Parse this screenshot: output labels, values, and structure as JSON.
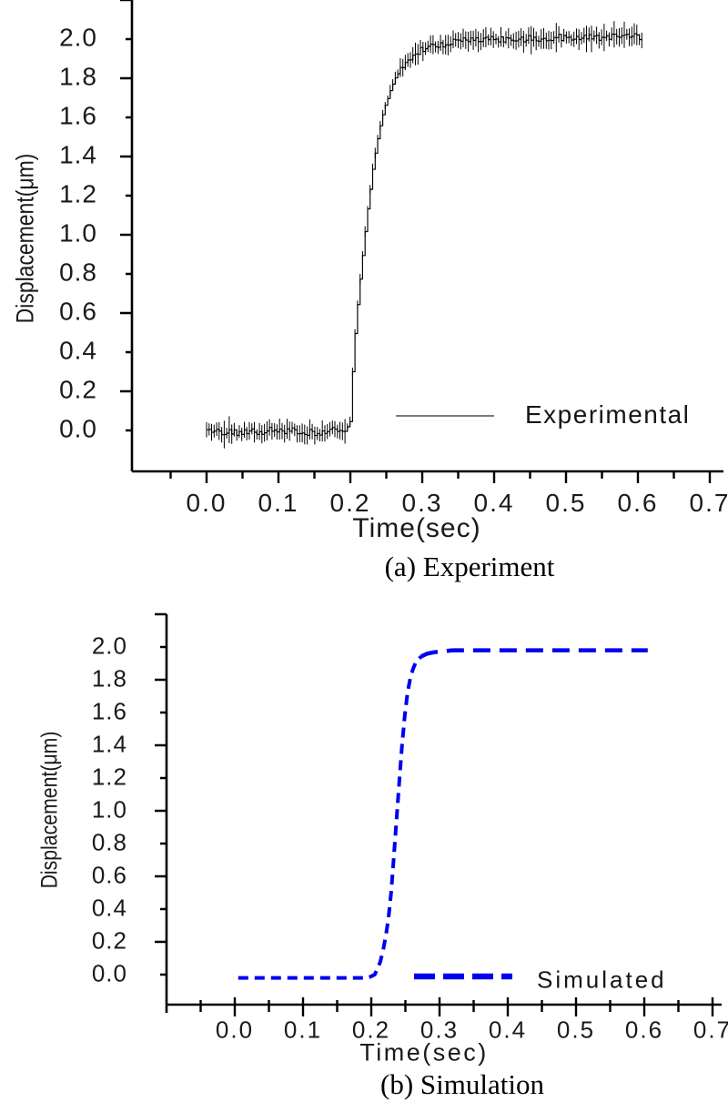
{
  "colors": {
    "ink": "#000000",
    "text": "#1a1a1a",
    "simulated_blue": "#0000ee"
  },
  "chart_data": [
    {
      "type": "line",
      "title": "(a) Experiment",
      "xlabel": "Time(sec)",
      "ylabel": "Displacement(μm)",
      "xlim": [
        -0.104,
        0.719
      ],
      "ylim": [
        -0.209,
        2.2
      ],
      "grid": false,
      "x_tick_values": [
        0.0,
        0.1,
        0.2,
        0.3,
        0.4,
        0.5,
        0.6,
        0.7
      ],
      "x_tick_labels": [
        "0.0",
        "0.1",
        "0.2",
        "0.3",
        "0.4",
        "0.5",
        "0.6",
        "0.7"
      ],
      "x_minor_step": 0.05,
      "y_tick_values": [
        0.0,
        0.2,
        0.4,
        0.6,
        0.8,
        1.0,
        1.2,
        1.4,
        1.6,
        1.8,
        2.0
      ],
      "y_tick_labels": [
        "0.0",
        "0.2",
        "0.4",
        "0.6",
        "0.8",
        "1.0",
        "1.2",
        "1.4",
        "1.6",
        "1.8",
        "2.0"
      ],
      "legend": {
        "label": "Experimental",
        "line_style": "solid",
        "color": "#000000",
        "position": "inside lower right"
      },
      "series": [
        {
          "name": "Experimental",
          "color": "#000000",
          "style": "steps-with-error-bars",
          "error_bar_amplitude": 0.05,
          "noise_amplitude": 0.018,
          "points": [
            [
              0.0,
              0.0
            ],
            [
              0.05,
              -0.01
            ],
            [
              0.1,
              0.0
            ],
            [
              0.15,
              -0.01
            ],
            [
              0.195,
              0.01
            ],
            [
              0.2,
              0.05
            ],
            [
              0.204,
              0.38
            ],
            [
              0.208,
              0.56
            ],
            [
              0.212,
              0.72
            ],
            [
              0.216,
              0.86
            ],
            [
              0.22,
              1.0
            ],
            [
              0.224,
              1.13
            ],
            [
              0.228,
              1.25
            ],
            [
              0.232,
              1.36
            ],
            [
              0.236,
              1.45
            ],
            [
              0.24,
              1.53
            ],
            [
              0.245,
              1.61
            ],
            [
              0.25,
              1.68
            ],
            [
              0.256,
              1.74
            ],
            [
              0.262,
              1.8
            ],
            [
              0.27,
              1.85
            ],
            [
              0.278,
              1.89
            ],
            [
              0.288,
              1.92
            ],
            [
              0.3,
              1.95
            ],
            [
              0.315,
              1.97
            ],
            [
              0.335,
              1.98
            ],
            [
              0.36,
              1.99
            ],
            [
              0.4,
              2.0
            ],
            [
              0.45,
              2.0
            ],
            [
              0.5,
              2.01
            ],
            [
              0.55,
              2.01
            ],
            [
              0.608,
              2.01
            ]
          ]
        }
      ]
    },
    {
      "type": "line",
      "title": "(b) Simulation",
      "xlabel": "Time(sec)",
      "ylabel": "Displacement(μm)",
      "xlim": [
        -0.1,
        0.713
      ],
      "ylim": [
        -0.183,
        2.2
      ],
      "grid": false,
      "x_tick_values": [
        0.0,
        0.1,
        0.2,
        0.3,
        0.4,
        0.5,
        0.6,
        0.7
      ],
      "x_tick_labels": [
        "0.0",
        "0.1",
        "0.2",
        "0.3",
        "0.4",
        "0.5",
        "0.6",
        "0.7"
      ],
      "x_minor_step": 0.05,
      "y_tick_values": [
        0.0,
        0.2,
        0.4,
        0.6,
        0.8,
        1.0,
        1.2,
        1.4,
        1.6,
        1.8,
        2.0
      ],
      "y_tick_labels": [
        "0.0",
        "0.2",
        "0.4",
        "0.6",
        "0.8",
        "1.0",
        "1.2",
        "1.4",
        "1.6",
        "1.8",
        "2.0"
      ],
      "legend": {
        "label": "Simulated",
        "line_style": "dashed",
        "color": "#0000ee",
        "position": "inside lower right"
      },
      "series": [
        {
          "name": "Simulated",
          "color": "#0000ee",
          "style": "dashed",
          "points": [
            [
              0.005,
              -0.02
            ],
            [
              0.05,
              -0.02
            ],
            [
              0.1,
              -0.02
            ],
            [
              0.15,
              -0.02
            ],
            [
              0.195,
              -0.02
            ],
            [
              0.205,
              0.0
            ],
            [
              0.212,
              0.06
            ],
            [
              0.218,
              0.16
            ],
            [
              0.224,
              0.3
            ],
            [
              0.229,
              0.5
            ],
            [
              0.233,
              0.72
            ],
            [
              0.237,
              0.95
            ],
            [
              0.241,
              1.18
            ],
            [
              0.245,
              1.4
            ],
            [
              0.249,
              1.58
            ],
            [
              0.253,
              1.72
            ],
            [
              0.258,
              1.83
            ],
            [
              0.264,
              1.9
            ],
            [
              0.272,
              1.94
            ],
            [
              0.282,
              1.96
            ],
            [
              0.295,
              1.97
            ],
            [
              0.32,
              1.98
            ],
            [
              0.4,
              1.98
            ],
            [
              0.5,
              1.98
            ],
            [
              0.605,
              1.98
            ]
          ]
        }
      ]
    }
  ]
}
